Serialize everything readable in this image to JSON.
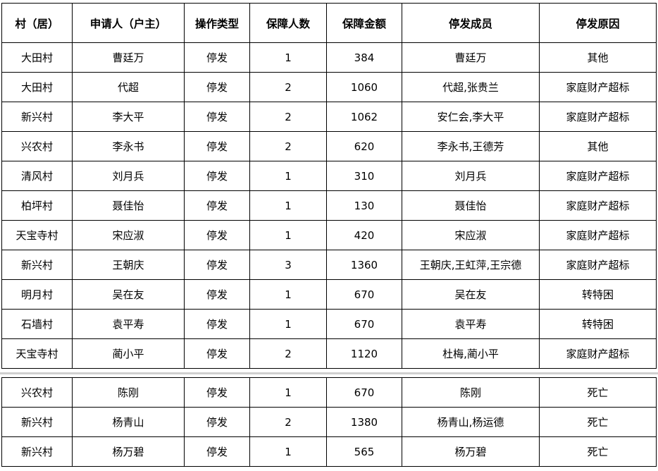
{
  "headers": [
    "村（居）",
    "申请人（户主）",
    "操作类型",
    "保障人数",
    "保障金额",
    "停发成员",
    "停发原因"
  ],
  "table1_rows": [
    [
      "大田村",
      "曹廷万",
      "停发",
      "1",
      "384",
      "曹廷万",
      "其他"
    ],
    [
      "大田村",
      "代超",
      "停发",
      "2",
      "1060",
      "代超,张贵兰",
      "家庭财产超标"
    ],
    [
      "新兴村",
      "李大平",
      "停发",
      "2",
      "1062",
      "安仁会,李大平",
      "家庭财产超标"
    ],
    [
      "兴农村",
      "李永书",
      "停发",
      "2",
      "620",
      "李永书,王德芳",
      "其他"
    ],
    [
      "清风村",
      "刘月兵",
      "停发",
      "1",
      "310",
      "刘月兵",
      "家庭财产超标"
    ],
    [
      "柏坪村",
      "聂佳怡",
      "停发",
      "1",
      "130",
      "聂佳怡",
      "家庭财产超标"
    ],
    [
      "天宝寺村",
      "宋应淑",
      "停发",
      "1",
      "420",
      "宋应淑",
      "家庭财产超标"
    ],
    [
      "新兴村",
      "王朝庆",
      "停发",
      "3",
      "1360",
      "王朝庆,王虹萍,王宗德",
      "家庭财产超标"
    ],
    [
      "明月村",
      "吴在友",
      "停发",
      "1",
      "670",
      "吴在友",
      "转特困"
    ],
    [
      "石墙村",
      "袁平寿",
      "停发",
      "1",
      "670",
      "袁平寿",
      "转特困"
    ],
    [
      "天宝寺村",
      "蔺小平",
      "停发",
      "2",
      "1120",
      "杜梅,蔺小平",
      "家庭财产超标"
    ]
  ],
  "table2_rows": [
    [
      "兴农村",
      "陈刚",
      "停发",
      "1",
      "670",
      "陈刚",
      "死亡"
    ],
    [
      "新兴村",
      "杨青山",
      "停发",
      "2",
      "1380",
      "杨青山,杨运德",
      "死亡"
    ],
    [
      "新兴村",
      "杨万碧",
      "停发",
      "1",
      "565",
      "杨万碧",
      "死亡"
    ]
  ]
}
